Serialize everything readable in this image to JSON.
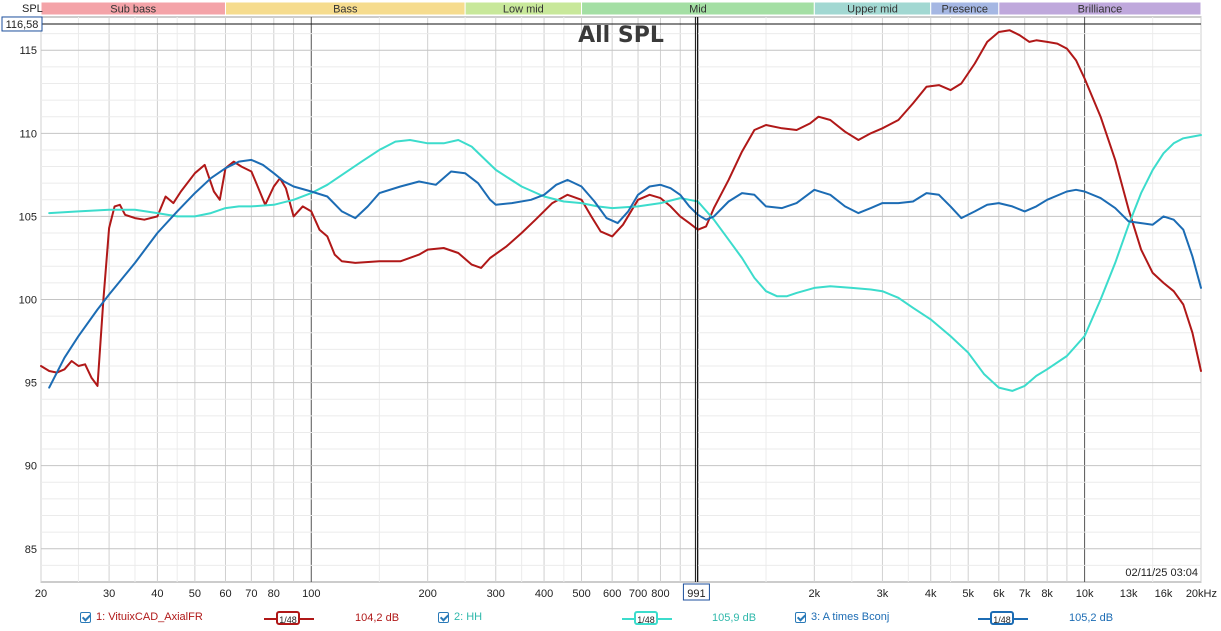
{
  "chart_data": {
    "type": "line",
    "title": "All SPL",
    "ylabel": "SPL",
    "x_unit": "kHz",
    "x_scale": "log",
    "xlim": [
      20,
      20000
    ],
    "ylim": [
      83,
      117
    ],
    "grid": true,
    "x_ticks": [
      {
        "v": 20,
        "label": "20"
      },
      {
        "v": 30,
        "label": "30"
      },
      {
        "v": 40,
        "label": "40"
      },
      {
        "v": 50,
        "label": "50"
      },
      {
        "v": 60,
        "label": "60"
      },
      {
        "v": 70,
        "label": "70"
      },
      {
        "v": 80,
        "label": "80"
      },
      {
        "v": 100,
        "label": "100"
      },
      {
        "v": 200,
        "label": "200"
      },
      {
        "v": 300,
        "label": "300"
      },
      {
        "v": 400,
        "label": "400"
      },
      {
        "v": 500,
        "label": "500"
      },
      {
        "v": 600,
        "label": "600"
      },
      {
        "v": 700,
        "label": "700"
      },
      {
        "v": 800,
        "label": "800"
      },
      {
        "v": 2000,
        "label": "2k"
      },
      {
        "v": 3000,
        "label": "3k"
      },
      {
        "v": 4000,
        "label": "4k"
      },
      {
        "v": 5000,
        "label": "5k"
      },
      {
        "v": 6000,
        "label": "6k"
      },
      {
        "v": 7000,
        "label": "7k"
      },
      {
        "v": 8000,
        "label": "8k"
      },
      {
        "v": 10000,
        "label": "10k"
      },
      {
        "v": 13000,
        "label": "13k"
      },
      {
        "v": 16000,
        "label": "16k"
      },
      {
        "v": 20000,
        "label": "20kHz"
      }
    ],
    "y_ticks": [
      85,
      90,
      95,
      100,
      105,
      110,
      115
    ],
    "bands": [
      {
        "label": "Sub bass",
        "from": 20,
        "to": 60,
        "color": "#f4a3a8"
      },
      {
        "label": "Bass",
        "from": 60,
        "to": 250,
        "color": "#f6dc8e"
      },
      {
        "label": "Low mid",
        "from": 250,
        "to": 500,
        "color": "#c8e89a"
      },
      {
        "label": "Mid",
        "from": 500,
        "to": 2000,
        "color": "#a4dfa4"
      },
      {
        "label": "Upper mid",
        "from": 2000,
        "to": 4000,
        "color": "#a2d8d2"
      },
      {
        "label": "Presence",
        "from": 4000,
        "to": 6000,
        "color": "#a5b7e3"
      },
      {
        "label": "Brilliance",
        "from": 6000,
        "to": 20000,
        "color": "#bfa8dc"
      }
    ],
    "cursor": {
      "x": 991,
      "x_label": "991",
      "y": 116.58,
      "y_label": "116,58"
    },
    "timestamp": "02/11/25 03:04",
    "series": [
      {
        "name": "1: VituixCAD_AxialFR",
        "color": "#b01818",
        "smoothing": "1/48",
        "readout": "104,2 dB",
        "points": [
          [
            20,
            96
          ],
          [
            21,
            95.7
          ],
          [
            22,
            95.6
          ],
          [
            23,
            95.8
          ],
          [
            24,
            96.3
          ],
          [
            25,
            96
          ],
          [
            26,
            96.1
          ],
          [
            27,
            95.3
          ],
          [
            28,
            94.8
          ],
          [
            29,
            100
          ],
          [
            30,
            104.3
          ],
          [
            31,
            105.6
          ],
          [
            32,
            105.7
          ],
          [
            33,
            105.1
          ],
          [
            35,
            104.9
          ],
          [
            37,
            104.8
          ],
          [
            40,
            105
          ],
          [
            42,
            106.2
          ],
          [
            44,
            105.8
          ],
          [
            46,
            106.5
          ],
          [
            50,
            107.6
          ],
          [
            53,
            108.1
          ],
          [
            56,
            106.5
          ],
          [
            58,
            106
          ],
          [
            60,
            107.9
          ],
          [
            63,
            108.3
          ],
          [
            66,
            108
          ],
          [
            70,
            107.7
          ],
          [
            73,
            106.7
          ],
          [
            76,
            105.7
          ],
          [
            80,
            106.8
          ],
          [
            83,
            107.3
          ],
          [
            86,
            106.7
          ],
          [
            90,
            105
          ],
          [
            95,
            105.6
          ],
          [
            100,
            105.3
          ],
          [
            105,
            104.2
          ],
          [
            110,
            103.8
          ],
          [
            115,
            102.7
          ],
          [
            120,
            102.3
          ],
          [
            130,
            102.2
          ],
          [
            150,
            102.3
          ],
          [
            170,
            102.3
          ],
          [
            190,
            102.7
          ],
          [
            200,
            103
          ],
          [
            220,
            103.1
          ],
          [
            240,
            102.8
          ],
          [
            260,
            102.1
          ],
          [
            275,
            101.9
          ],
          [
            290,
            102.5
          ],
          [
            320,
            103.2
          ],
          [
            350,
            104
          ],
          [
            380,
            104.8
          ],
          [
            420,
            105.8
          ],
          [
            460,
            106.3
          ],
          [
            500,
            106
          ],
          [
            530,
            105
          ],
          [
            560,
            104.1
          ],
          [
            600,
            103.8
          ],
          [
            640,
            104.5
          ],
          [
            700,
            106
          ],
          [
            750,
            106.3
          ],
          [
            800,
            106.1
          ],
          [
            850,
            105.6
          ],
          [
            900,
            105
          ],
          [
            950,
            104.6
          ],
          [
            1000,
            104.2
          ],
          [
            1050,
            104.4
          ],
          [
            1100,
            105.5
          ],
          [
            1200,
            107.2
          ],
          [
            1300,
            108.9
          ],
          [
            1400,
            110.2
          ],
          [
            1500,
            110.5
          ],
          [
            1650,
            110.3
          ],
          [
            1800,
            110.2
          ],
          [
            1950,
            110.6
          ],
          [
            2050,
            111
          ],
          [
            2200,
            110.8
          ],
          [
            2400,
            110.1
          ],
          [
            2600,
            109.6
          ],
          [
            2800,
            110
          ],
          [
            3000,
            110.3
          ],
          [
            3300,
            110.8
          ],
          [
            3600,
            111.8
          ],
          [
            3900,
            112.8
          ],
          [
            4200,
            112.9
          ],
          [
            4500,
            112.6
          ],
          [
            4800,
            113
          ],
          [
            5200,
            114.2
          ],
          [
            5600,
            115.5
          ],
          [
            6000,
            116.1
          ],
          [
            6400,
            116.2
          ],
          [
            6800,
            115.9
          ],
          [
            7200,
            115.5
          ],
          [
            7500,
            115.6
          ],
          [
            8000,
            115.5
          ],
          [
            8500,
            115.4
          ],
          [
            9000,
            115.1
          ],
          [
            9500,
            114.4
          ],
          [
            10000,
            113.3
          ],
          [
            11000,
            111
          ],
          [
            12000,
            108.4
          ],
          [
            13000,
            105.4
          ],
          [
            14000,
            103
          ],
          [
            15000,
            101.6
          ],
          [
            16000,
            101
          ],
          [
            17000,
            100.5
          ],
          [
            18000,
            99.7
          ],
          [
            19000,
            98
          ],
          [
            20000,
            95.7
          ]
        ]
      },
      {
        "name": "2: HH",
        "color": "#3cdccc",
        "smoothing": "1/48",
        "readout": "105,9 dB",
        "points": [
          [
            21,
            105.2
          ],
          [
            25,
            105.3
          ],
          [
            30,
            105.4
          ],
          [
            35,
            105.4
          ],
          [
            40,
            105.2
          ],
          [
            45,
            105
          ],
          [
            50,
            105
          ],
          [
            55,
            105.2
          ],
          [
            60,
            105.5
          ],
          [
            65,
            105.6
          ],
          [
            70,
            105.6
          ],
          [
            80,
            105.7
          ],
          [
            90,
            106
          ],
          [
            100,
            106.4
          ],
          [
            110,
            106.9
          ],
          [
            120,
            107.5
          ],
          [
            135,
            108.3
          ],
          [
            150,
            109
          ],
          [
            165,
            109.5
          ],
          [
            180,
            109.6
          ],
          [
            200,
            109.4
          ],
          [
            220,
            109.4
          ],
          [
            240,
            109.6
          ],
          [
            260,
            109.2
          ],
          [
            300,
            107.8
          ],
          [
            350,
            106.8
          ],
          [
            400,
            106.2
          ],
          [
            450,
            105.9
          ],
          [
            500,
            105.8
          ],
          [
            550,
            105.6
          ],
          [
            600,
            105.5
          ],
          [
            700,
            105.6
          ],
          [
            800,
            105.8
          ],
          [
            900,
            106.1
          ],
          [
            950,
            106
          ],
          [
            1000,
            105.9
          ],
          [
            1100,
            104.8
          ],
          [
            1200,
            103.6
          ],
          [
            1300,
            102.5
          ],
          [
            1400,
            101.3
          ],
          [
            1500,
            100.5
          ],
          [
            1600,
            100.2
          ],
          [
            1700,
            100.2
          ],
          [
            1800,
            100.4
          ],
          [
            2000,
            100.7
          ],
          [
            2200,
            100.8
          ],
          [
            2500,
            100.7
          ],
          [
            2800,
            100.6
          ],
          [
            3000,
            100.5
          ],
          [
            3300,
            100.1
          ],
          [
            3600,
            99.5
          ],
          [
            4000,
            98.8
          ],
          [
            4500,
            97.8
          ],
          [
            5000,
            96.8
          ],
          [
            5500,
            95.5
          ],
          [
            6000,
            94.7
          ],
          [
            6500,
            94.5
          ],
          [
            7000,
            94.8
          ],
          [
            7500,
            95.4
          ],
          [
            8000,
            95.8
          ],
          [
            9000,
            96.6
          ],
          [
            10000,
            97.8
          ],
          [
            11000,
            100
          ],
          [
            12000,
            102.2
          ],
          [
            13000,
            104.5
          ],
          [
            14000,
            106.4
          ],
          [
            15000,
            107.8
          ],
          [
            16000,
            108.8
          ],
          [
            17000,
            109.4
          ],
          [
            18000,
            109.7
          ],
          [
            19000,
            109.8
          ],
          [
            20000,
            109.9
          ]
        ]
      },
      {
        "name": "3: A times Bconj",
        "color": "#1c6cb4",
        "smoothing": "1/48",
        "readout": "105,2 dB",
        "points": [
          [
            21,
            94.7
          ],
          [
            23,
            96.5
          ],
          [
            25,
            97.8
          ],
          [
            28,
            99.4
          ],
          [
            30,
            100.3
          ],
          [
            35,
            102.2
          ],
          [
            40,
            104
          ],
          [
            45,
            105.3
          ],
          [
            50,
            106.4
          ],
          [
            55,
            107.3
          ],
          [
            60,
            107.9
          ],
          [
            65,
            108.3
          ],
          [
            70,
            108.4
          ],
          [
            75,
            108.1
          ],
          [
            80,
            107.6
          ],
          [
            85,
            107.1
          ],
          [
            90,
            106.8
          ],
          [
            100,
            106.5
          ],
          [
            110,
            106.2
          ],
          [
            120,
            105.3
          ],
          [
            130,
            104.9
          ],
          [
            140,
            105.6
          ],
          [
            150,
            106.4
          ],
          [
            170,
            106.8
          ],
          [
            190,
            107.1
          ],
          [
            210,
            106.9
          ],
          [
            230,
            107.7
          ],
          [
            250,
            107.6
          ],
          [
            270,
            107
          ],
          [
            290,
            106
          ],
          [
            300,
            105.7
          ],
          [
            330,
            105.8
          ],
          [
            370,
            106
          ],
          [
            400,
            106.3
          ],
          [
            430,
            106.9
          ],
          [
            460,
            107.2
          ],
          [
            500,
            106.8
          ],
          [
            540,
            105.9
          ],
          [
            580,
            104.9
          ],
          [
            620,
            104.6
          ],
          [
            660,
            105.3
          ],
          [
            700,
            106.3
          ],
          [
            750,
            106.8
          ],
          [
            800,
            106.9
          ],
          [
            850,
            106.7
          ],
          [
            900,
            106.3
          ],
          [
            950,
            105.6
          ],
          [
            1000,
            105.1
          ],
          [
            1050,
            104.8
          ],
          [
            1100,
            105
          ],
          [
            1200,
            105.9
          ],
          [
            1300,
            106.4
          ],
          [
            1400,
            106.3
          ],
          [
            1500,
            105.6
          ],
          [
            1650,
            105.5
          ],
          [
            1800,
            105.8
          ],
          [
            2000,
            106.6
          ],
          [
            2200,
            106.3
          ],
          [
            2400,
            105.6
          ],
          [
            2600,
            105.2
          ],
          [
            2800,
            105.5
          ],
          [
            3000,
            105.8
          ],
          [
            3300,
            105.8
          ],
          [
            3600,
            105.9
          ],
          [
            3900,
            106.4
          ],
          [
            4200,
            106.3
          ],
          [
            4500,
            105.6
          ],
          [
            4800,
            104.9
          ],
          [
            5200,
            105.3
          ],
          [
            5600,
            105.7
          ],
          [
            6000,
            105.8
          ],
          [
            6500,
            105.6
          ],
          [
            7000,
            105.3
          ],
          [
            7500,
            105.6
          ],
          [
            8000,
            106
          ],
          [
            9000,
            106.5
          ],
          [
            9500,
            106.6
          ],
          [
            10000,
            106.5
          ],
          [
            11000,
            106.1
          ],
          [
            12000,
            105.5
          ],
          [
            13000,
            104.7
          ],
          [
            14000,
            104.6
          ],
          [
            15000,
            104.5
          ],
          [
            16000,
            105
          ],
          [
            17000,
            104.8
          ],
          [
            18000,
            104.2
          ],
          [
            19000,
            102.6
          ],
          [
            20000,
            100.7
          ]
        ]
      }
    ]
  }
}
